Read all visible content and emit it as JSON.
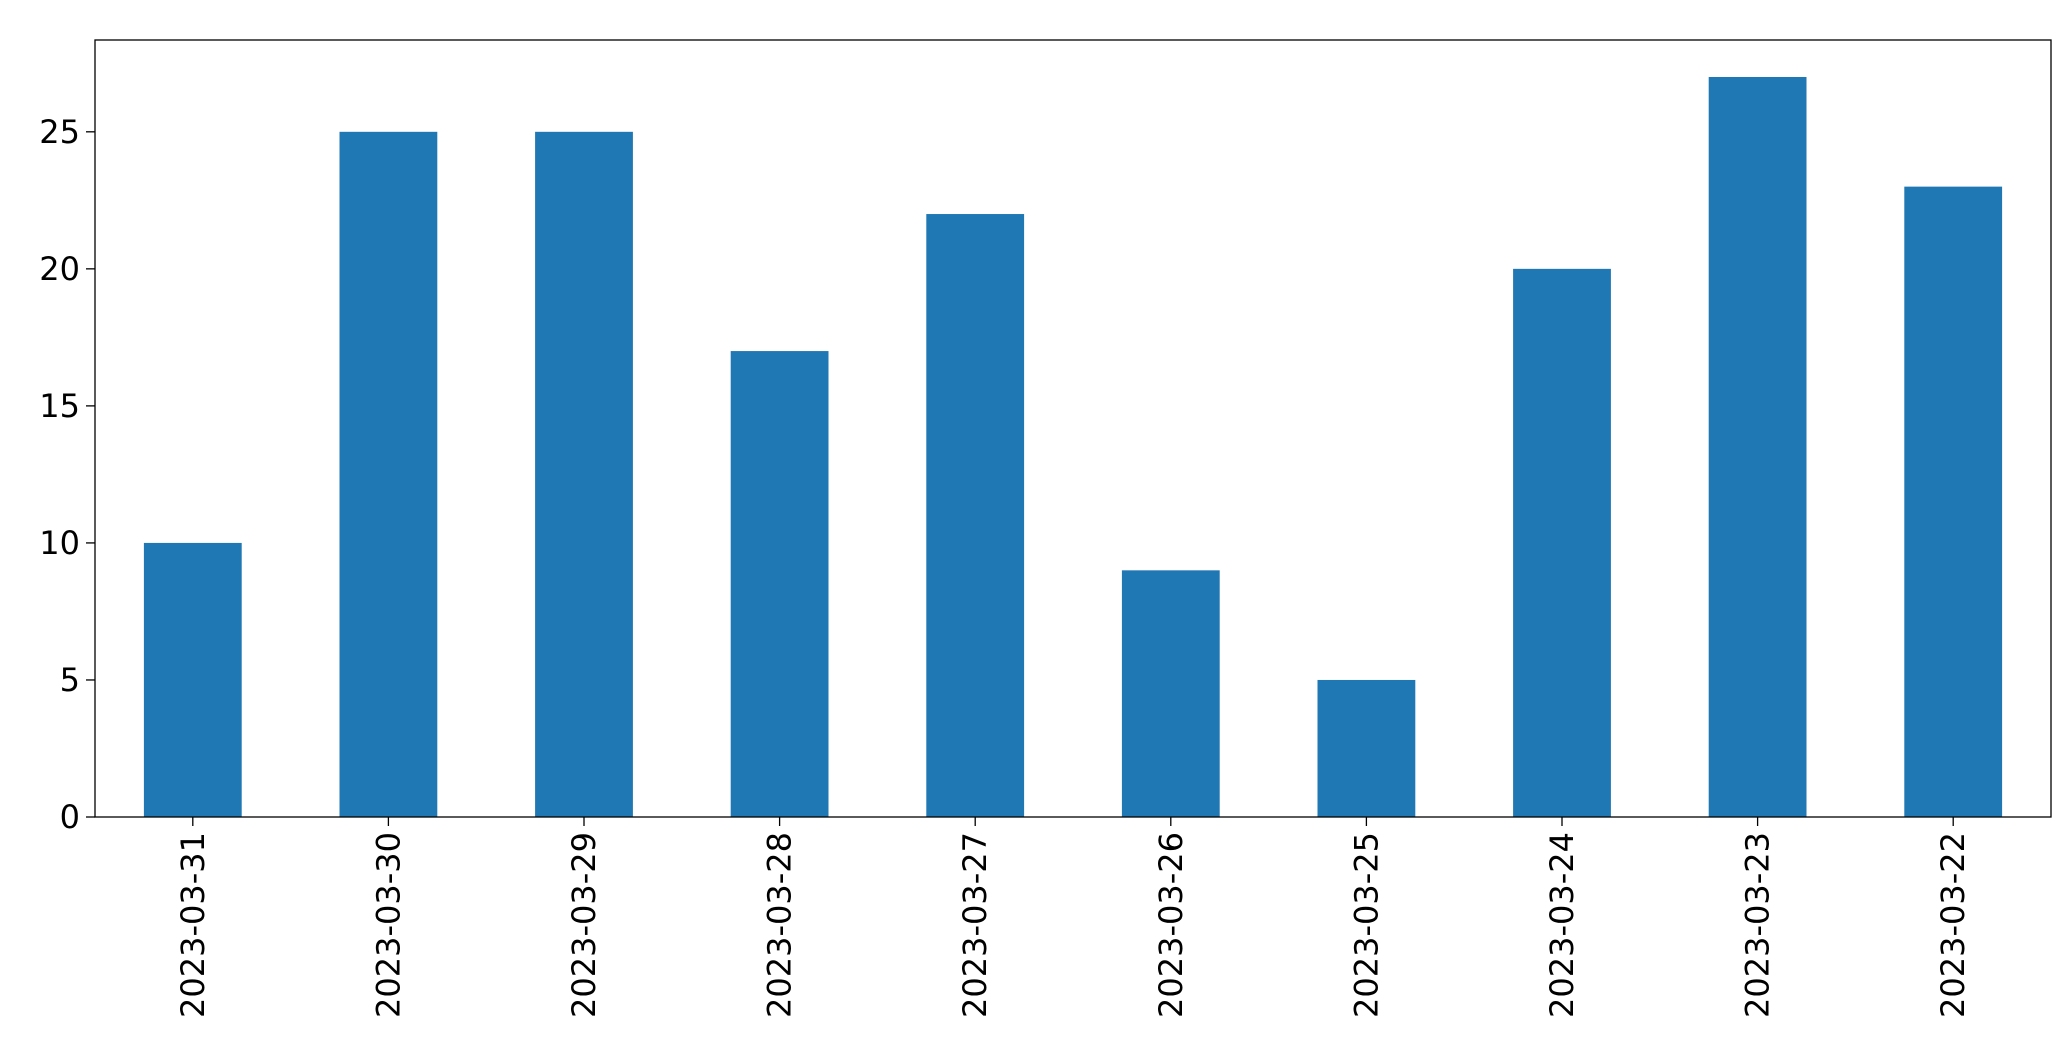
{
  "chart_data": {
    "type": "bar",
    "categories": [
      "2023-03-31",
      "2023-03-30",
      "2023-03-29",
      "2023-03-28",
      "2023-03-27",
      "2023-03-26",
      "2023-03-25",
      "2023-03-24",
      "2023-03-23",
      "2023-03-22"
    ],
    "values": [
      10,
      25,
      25,
      17,
      22,
      9,
      5,
      20,
      27,
      23
    ],
    "color": "#1f77b4",
    "ylim": [
      0,
      28.35
    ],
    "yticks": [
      0,
      5,
      10,
      15,
      20,
      25
    ],
    "grid": false
  }
}
